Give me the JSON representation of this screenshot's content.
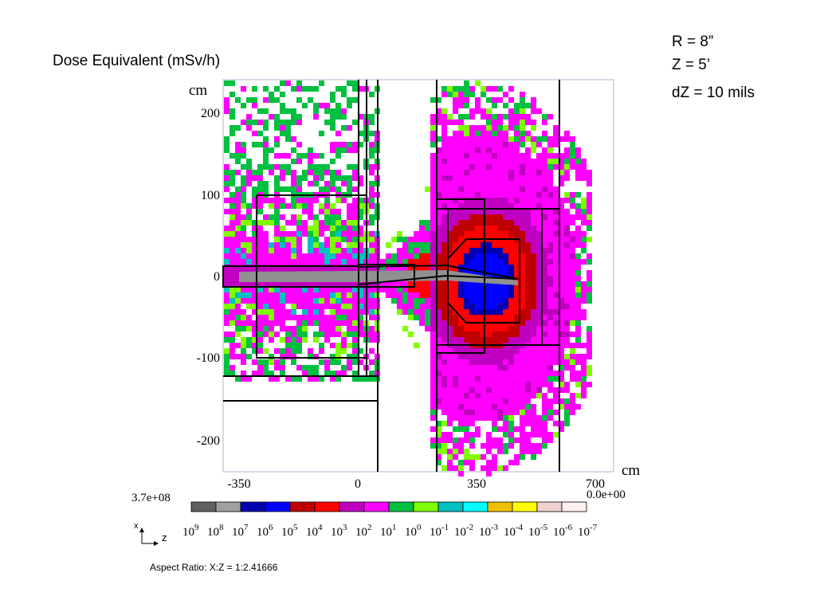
{
  "slide": {
    "title": "Dose Equivalent (mSv/h)",
    "params": [
      "R = 8”",
      "Z = 5’",
      "dZ = 10 mils"
    ]
  },
  "plot": {
    "y_unit": "cm",
    "x_unit": "cm",
    "yticks": [
      "200",
      "100",
      "0",
      "-100",
      "-200"
    ],
    "xticks": [
      "-350",
      "0",
      "350",
      "700"
    ],
    "colorbar": {
      "max": "3.7e+08",
      "min": "0.0e+00",
      "base": "10",
      "exponents": [
        "9",
        "8",
        "7",
        "6",
        "5",
        "4",
        "3",
        "2",
        "1",
        "0",
        "-1",
        "-2",
        "-3",
        "-4",
        "-5",
        "-6",
        "-7"
      ],
      "colors": [
        "#606060",
        "#a0a0a0",
        "#0000b0",
        "#0000ff",
        "#c00000",
        "#ff0000",
        "#c000c0",
        "#ff00ff",
        "#00c040",
        "#80ff00",
        "#00c0c0",
        "#00ffff",
        "#f0c000",
        "#ffff00",
        "#f0d0d0",
        "#fff0f0"
      ]
    },
    "axis_x": "x",
    "axis_z": "z",
    "aspect": "Aspect Ratio: X:Z = 1:2.41666"
  }
}
